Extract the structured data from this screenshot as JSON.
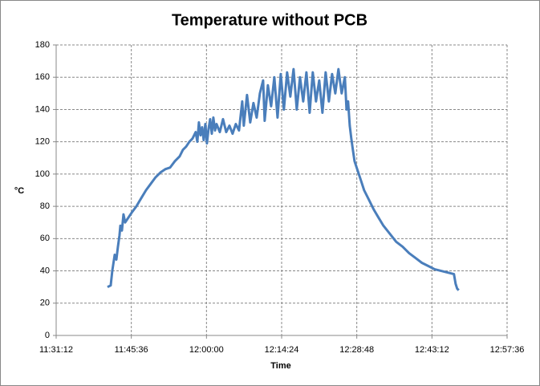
{
  "chart_data": {
    "type": "line",
    "title": "Temperature without PCB",
    "x_label": "Time",
    "y_label": "°C",
    "x": [
      42062,
      42099,
      42117,
      42145,
      42164,
      42182,
      42200,
      42210,
      42228,
      42246,
      42265,
      42302,
      42339,
      42394,
      42449,
      42505,
      42560,
      42615,
      42671,
      42726,
      42781,
      42837,
      42892,
      42929,
      42966,
      43003,
      43039,
      43076,
      43095,
      43113,
      43132,
      43150,
      43168,
      43187,
      43205,
      43224,
      43242,
      43261,
      43279,
      43298,
      43316,
      43353,
      43390,
      43427,
      43464,
      43500,
      43537,
      43574,
      43611,
      43629,
      43666,
      43703,
      43740,
      43777,
      43814,
      43851,
      43869,
      43906,
      43943,
      43980,
      44017,
      44054,
      44090,
      44127,
      44164,
      44201,
      44238,
      44275,
      44312,
      44349,
      44386,
      44422,
      44459,
      44496,
      44533,
      44570,
      44607,
      44644,
      44681,
      44717,
      44754,
      44791,
      44810,
      44828,
      44847,
      44865,
      44883,
      44902,
      44939,
      44976,
      45012,
      45068,
      45123,
      45178,
      45234,
      45308,
      45381,
      45455,
      45529,
      45603,
      45676,
      45750,
      45824,
      45898,
      45971,
      46045,
      46064,
      46082,
      46100
    ],
    "values": [
      30,
      31,
      40,
      50,
      47,
      55,
      62,
      68,
      65,
      75,
      70,
      73,
      76,
      80,
      85,
      90,
      94,
      98,
      101,
      103,
      104,
      108,
      111,
      115,
      117,
      120,
      122,
      126,
      120,
      132,
      124,
      129,
      121,
      131,
      119,
      128,
      134,
      125,
      135,
      127,
      131,
      126,
      134,
      126,
      130,
      125,
      131,
      127,
      145,
      130,
      149,
      132,
      144,
      135,
      150,
      158,
      133,
      155,
      142,
      160,
      135,
      162,
      140,
      163,
      148,
      165,
      140,
      160,
      145,
      163,
      138,
      163,
      145,
      158,
      138,
      163,
      145,
      162,
      150,
      165,
      150,
      160,
      140,
      145,
      130,
      122,
      115,
      108,
      102,
      96,
      90,
      84,
      78,
      73,
      68,
      63,
      58,
      55,
      51,
      48,
      45,
      43,
      41,
      40,
      39,
      38,
      32,
      29,
      28
    ],
    "color": "#4a7ebb",
    "xlim": [
      41472,
      46656
    ],
    "xticks": [
      {
        "value": 41472,
        "label": "11:31:12"
      },
      {
        "value": 42336,
        "label": "11:45:36"
      },
      {
        "value": 43200,
        "label": "12:00:00"
      },
      {
        "value": 44064,
        "label": "12:14:24"
      },
      {
        "value": 44928,
        "label": "12:28:48"
      },
      {
        "value": 45792,
        "label": "12:43:12"
      },
      {
        "value": 46656,
        "label": "12:57:36"
      }
    ],
    "ylim": [
      0,
      180
    ],
    "yticks": [
      0,
      20,
      40,
      60,
      80,
      100,
      120,
      140,
      160,
      180
    ],
    "grid": true
  }
}
